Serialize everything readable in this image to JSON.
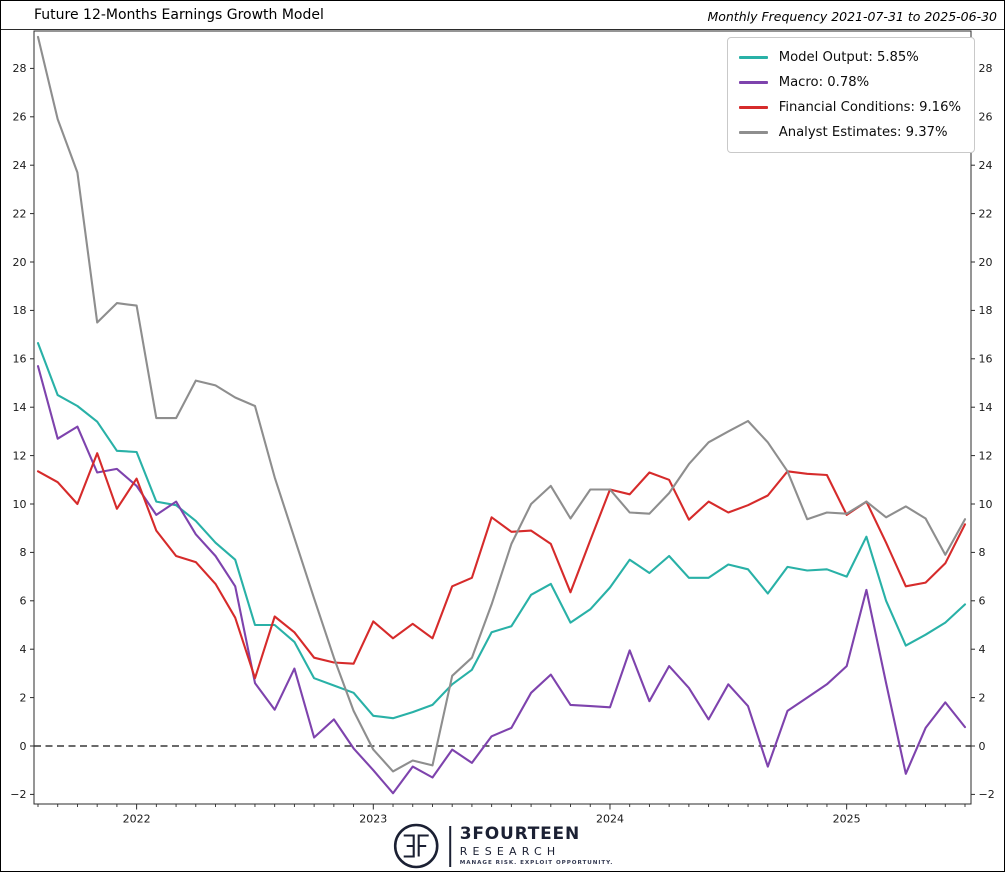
{
  "header": {
    "title": "Future 12-Months Earnings Growth Model",
    "frequency_note": "Monthly Frequency 2021-07-31 to 2025-06-30"
  },
  "legend": {
    "entries": [
      {
        "label": "Model Output: 5.85%",
        "color": "#29b1a7"
      },
      {
        "label": "Macro: 0.78%",
        "color": "#7e43ad"
      },
      {
        "label": "Financial Conditions: 9.16%",
        "color": "#d62b2b"
      },
      {
        "label": "Analyst Estimates: 9.37%",
        "color": "#8e8e8e"
      }
    ]
  },
  "chart_data": {
    "type": "line",
    "title": "Future 12-Months Earnings Growth Model",
    "subtitle": "Monthly Frequency 2021-07-31 to 2025-06-30",
    "x_months": [
      "2021-07",
      "2021-08",
      "2021-09",
      "2021-10",
      "2021-11",
      "2021-12",
      "2022-01",
      "2022-02",
      "2022-03",
      "2022-04",
      "2022-05",
      "2022-06",
      "2022-07",
      "2022-08",
      "2022-09",
      "2022-10",
      "2022-11",
      "2022-12",
      "2023-01",
      "2023-02",
      "2023-03",
      "2023-04",
      "2023-05",
      "2023-06",
      "2023-07",
      "2023-08",
      "2023-09",
      "2023-10",
      "2023-11",
      "2023-12",
      "2024-01",
      "2024-02",
      "2024-03",
      "2024-04",
      "2024-05",
      "2024-06",
      "2024-07",
      "2024-08",
      "2024-09",
      "2024-10",
      "2024-11",
      "2024-12",
      "2025-01",
      "2025-02",
      "2025-03",
      "2025-04",
      "2025-05",
      "2025-06"
    ],
    "series": [
      {
        "name": "Model Output",
        "final_value": "5.85%",
        "color": "#29b1a7",
        "values": [
          16.65,
          14.5,
          14.05,
          13.4,
          12.2,
          12.15,
          10.1,
          9.95,
          9.3,
          8.4,
          7.7,
          5.0,
          5.0,
          4.3,
          2.8,
          2.5,
          2.2,
          1.25,
          1.15,
          1.4,
          1.7,
          2.55,
          3.15,
          4.7,
          4.95,
          6.25,
          6.7,
          5.1,
          5.65,
          6.55,
          7.7,
          7.15,
          7.85,
          6.95,
          6.95,
          7.5,
          7.3,
          6.3,
          7.4,
          7.25,
          7.3,
          7.0,
          8.65,
          6.0,
          4.15,
          4.6,
          5.1,
          5.85
        ]
      },
      {
        "name": "Macro",
        "final_value": "0.78%",
        "color": "#7e43ad",
        "values": [
          15.7,
          12.7,
          13.2,
          11.3,
          11.45,
          10.75,
          9.55,
          10.1,
          8.75,
          7.85,
          6.6,
          2.6,
          1.5,
          3.2,
          0.35,
          1.1,
          -0.1,
          -1.0,
          -1.95,
          -0.85,
          -1.3,
          -0.15,
          -0.7,
          0.4,
          0.75,
          2.2,
          2.95,
          1.7,
          1.65,
          1.6,
          3.95,
          1.85,
          3.3,
          2.4,
          1.1,
          2.55,
          1.65,
          -0.85,
          1.45,
          2.0,
          2.55,
          3.3,
          6.45,
          2.6,
          -1.15,
          0.75,
          1.8,
          0.78
        ]
      },
      {
        "name": "Financial Conditions",
        "final_value": "9.16%",
        "color": "#d62b2b",
        "values": [
          11.35,
          10.9,
          10.0,
          12.1,
          9.8,
          11.05,
          8.9,
          7.85,
          7.6,
          6.7,
          5.3,
          2.8,
          5.35,
          4.7,
          3.65,
          3.45,
          3.4,
          5.15,
          4.45,
          5.05,
          4.45,
          6.6,
          6.95,
          9.45,
          8.85,
          8.9,
          8.35,
          6.35,
          8.5,
          10.6,
          10.4,
          11.3,
          11.0,
          9.35,
          10.1,
          9.65,
          9.95,
          10.35,
          11.35,
          11.25,
          11.2,
          9.55,
          10.1,
          8.4,
          6.6,
          6.75,
          7.55,
          9.16
        ]
      },
      {
        "name": "Analyst Estimates",
        "final_value": "9.37%",
        "color": "#8e8e8e",
        "values": [
          29.3,
          25.9,
          23.7,
          17.5,
          18.3,
          18.2,
          13.55,
          13.55,
          15.1,
          14.9,
          14.4,
          14.05,
          11.1,
          8.6,
          6.1,
          3.65,
          1.45,
          -0.15,
          -1.05,
          -0.6,
          -0.8,
          2.9,
          3.65,
          5.85,
          8.35,
          10.0,
          10.75,
          9.4,
          10.6,
          10.6,
          9.65,
          9.6,
          10.45,
          11.65,
          12.55,
          13.0,
          13.43,
          12.55,
          11.35,
          9.37,
          9.65,
          9.6,
          10.1,
          9.45,
          9.9,
          9.4,
          7.9,
          9.37
        ]
      }
    ],
    "xtick_labels": [
      "2022",
      "2023",
      "2024",
      "2025"
    ],
    "yticks": [
      -2,
      0,
      2,
      4,
      6,
      8,
      10,
      12,
      14,
      16,
      18,
      20,
      22,
      24,
      26,
      28
    ],
    "ylim": [
      -2.4,
      29.55
    ],
    "grid": false,
    "zero_line": "dashed",
    "legend_position": "upper right",
    "y_axis_mirrored": true
  },
  "branding": {
    "monogram": "3F",
    "name_top": "3FOURTEEN",
    "name_bottom": "RESEARCH",
    "tagline": "MANAGE RISK. EXPLOIT OPPORTUNITY."
  }
}
